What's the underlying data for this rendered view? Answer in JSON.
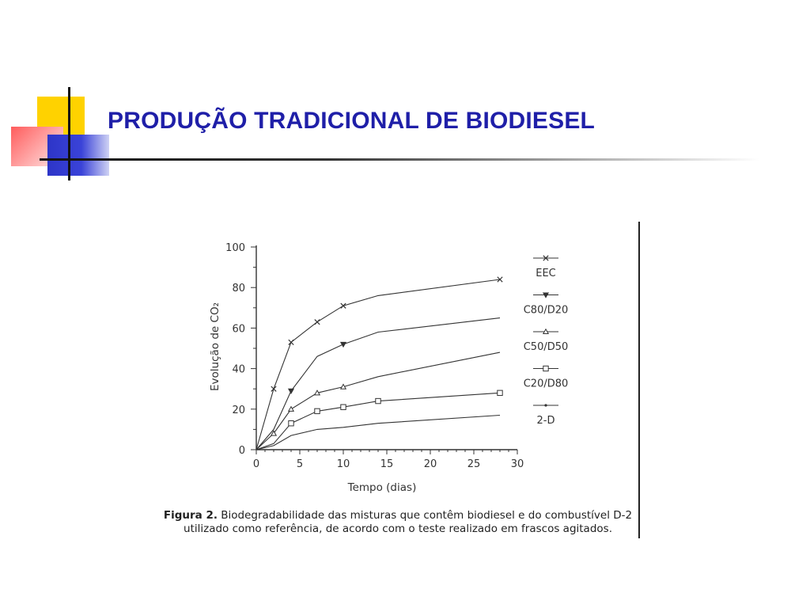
{
  "slide": {
    "title": "PRODUÇÃO TRADICIONAL DE BIODIESEL"
  },
  "colors": {
    "title": "#1f1fa8",
    "deco_yellow": "#ffd200",
    "deco_red": "#ff5c5c",
    "deco_blue": "#2d35c8",
    "chart_ink": "#333333"
  },
  "figure": {
    "caption_label": "Figura 2.",
    "caption_text": "Biodegradabilidade das misturas que contêm biodiesel e do combustível D-2 utilizado como referência, de acordo com o teste realizado em frascos agitados."
  },
  "chart_data": {
    "type": "line",
    "xlabel": "Tempo (dias)",
    "ylabel": "Evolução de CO₂",
    "xlim": [
      0,
      30
    ],
    "ylim": [
      0,
      100
    ],
    "xticks": [
      0,
      5,
      10,
      15,
      20,
      25,
      30
    ],
    "yticks": [
      0,
      20,
      40,
      60,
      80,
      100
    ],
    "grid": false,
    "legend_position": "right",
    "series": [
      {
        "name": "EEC",
        "marker": "x",
        "x": [
          0,
          2,
          4,
          7,
          10,
          14,
          28
        ],
        "y": [
          0,
          30,
          53,
          63,
          71,
          76,
          84
        ],
        "marked": [
          1,
          2,
          3,
          4,
          6
        ]
      },
      {
        "name": "C80/D20",
        "marker": "triangle-down",
        "x": [
          0,
          2,
          4,
          7,
          10,
          14,
          28
        ],
        "y": [
          0,
          10,
          29,
          46,
          52,
          58,
          65
        ],
        "marked": [
          2,
          4
        ]
      },
      {
        "name": "C50/D50",
        "marker": "triangle-up",
        "x": [
          0,
          2,
          4,
          7,
          10,
          14,
          28
        ],
        "y": [
          0,
          8,
          20,
          28,
          31,
          36,
          48
        ],
        "marked": [
          1,
          2,
          3,
          4
        ]
      },
      {
        "name": "C20/D80",
        "marker": "square",
        "x": [
          0,
          2,
          4,
          7,
          10,
          14,
          28
        ],
        "y": [
          0,
          3,
          13,
          19,
          21,
          24,
          28
        ],
        "marked": [
          2,
          3,
          4,
          5,
          6
        ]
      },
      {
        "name": "2-D",
        "marker": "dot",
        "x": [
          0,
          2,
          4,
          7,
          10,
          14,
          28
        ],
        "y": [
          0,
          2,
          7,
          10,
          11,
          13,
          17
        ],
        "marked": []
      }
    ]
  }
}
